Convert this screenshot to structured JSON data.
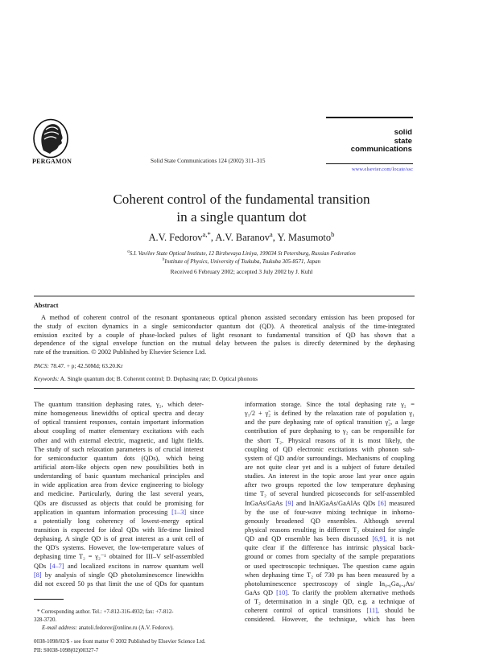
{
  "header": {
    "publisher": "PERGAMON",
    "journal_ref": "Solid State Communications 124 (2002) 311–315",
    "journal_logo": [
      "solid",
      "state",
      "communications"
    ],
    "url": "www.elsevier.com/locate/ssc",
    "link_color": "#3a3ae0"
  },
  "title": [
    "Coherent control of the fundamental transition",
    "in a single quantum dot"
  ],
  "authors": [
    {
      "name": "A.V. Fedorov",
      "sup": "a,*"
    },
    {
      "name": "A.V. Baranov",
      "sup": "a"
    },
    {
      "name": "Y. Masumoto",
      "sup": "b"
    }
  ],
  "author_separator": ", ",
  "affiliations": [
    {
      "sup": "a",
      "text": "S.I. Vavilov State Optical Institute, 12 Birzhevaya Liniya, 199034 St Petersburg, Russian Federation"
    },
    {
      "sup": "b",
      "text": "Institute of Physics, University of Tsukuba, Tsukuba 305-8571, Japan"
    }
  ],
  "received": "Received 6 February 2002; accepted 3 July 2002 by J. Kuhl",
  "abstract": {
    "heading": "Abstract",
    "lines": [
      "A method of coherent control of the resonant spontaneous optical phonon assisted secondary emission has been proposed for",
      "the study of exciton dynamics in a single semiconductor quantum dot (QD). A theoretical analysis of the time-integrated",
      "emission excited by a couple of phase-locked pulses of light resonant to fundamental transition of QD has shown that a",
      "dependence of the signal envelope function on the mutual delay between the pulses is directly determined by the dephasing",
      "rate of the transition. © 2002 Published by Elsevier Science Ltd."
    ],
    "pacs_label": "PACS:",
    "pacs": " 78.47. + p; 42.50Md; 63.20.Kr",
    "keywords_label": "Keywords:",
    "keywords": " A. Single quantum dot; B. Coherent control; D. Dephasing rate; D. Optical phonons"
  },
  "body": {
    "left": [
      [
        {
          "t": "The quantum transition dephasing rates, γ₂, which deter-"
        }
      ],
      [
        {
          "t": "mine homogeneous linewidths of optical spectra and decay"
        }
      ],
      [
        {
          "t": "of optical transient responses, contain important information"
        }
      ],
      [
        {
          "t": "about coupling of matter elementary excitations with each"
        }
      ],
      [
        {
          "t": "other and with external electric, magnetic, and light fields."
        }
      ],
      [
        {
          "t": "The study of such relaxation parameters is of crucial interest"
        }
      ],
      [
        {
          "t": "for semiconductor quantum dots (QDs), which being"
        }
      ],
      [
        {
          "t": "artificial atom-like objects open new possibilities both in"
        }
      ],
      [
        {
          "t": "understanding of basic quantum mechanical principles and"
        }
      ],
      [
        {
          "t": "in wide application area from device engineering to biology"
        }
      ],
      [
        {
          "t": "and medicine. Particularly, during the last several years,"
        }
      ],
      [
        {
          "t": "QDs are discussed as objects that could be promising for"
        }
      ],
      [
        {
          "t": "application in quantum information processing "
        },
        {
          "t": "[1–3]",
          "link": true
        },
        {
          "t": " since"
        }
      ],
      [
        {
          "t": "a potentially long coherency of lowest-energy optical"
        }
      ],
      [
        {
          "t": "transition is expected for ideal QDs with life-time limited"
        }
      ],
      [
        {
          "t": "dephasing. A single QD is of great interest as a unit cell of"
        }
      ],
      [
        {
          "t": "the QD's systems. However, the low-temperature values of"
        }
      ],
      [
        {
          "t": "dephasing time T₂ = γ₂⁻¹ obtained for III–V self-assembled"
        }
      ],
      [
        {
          "t": "QDs "
        },
        {
          "t": "[4–7]",
          "link": true
        },
        {
          "t": " and localized excitons in narrow quantum well"
        }
      ],
      [
        {
          "t": "[8]",
          "link": true
        },
        {
          "t": " by analysis of single QD photoluminescence linewidths"
        }
      ],
      [
        {
          "t": "did not exceed 50 ps that limit the use of QDs for quantum"
        }
      ]
    ],
    "right": [
      [
        {
          "t": "information storage. Since the total dephasing rate γ₂ ="
        }
      ],
      [
        {
          "t": "γ₁/2 + γ̃₂ is defined by the relaxation rate of population γ₁"
        }
      ],
      [
        {
          "t": "and the pure dephasing rate of optical transition γ̃₂, a large"
        }
      ],
      [
        {
          "t": "contribution of pure dephasing to γ₂ can be responsible for"
        }
      ],
      [
        {
          "t": "the short T₂. Physical reasons of it is most likely, the"
        }
      ],
      [
        {
          "t": "coupling of QD electronic excitations with phonon sub-"
        }
      ],
      [
        {
          "t": "system of QD and/or surroundings. Mechanisms of coupling"
        }
      ],
      [
        {
          "t": "are not quite clear yet and is a subject of future detailed"
        }
      ],
      [
        {
          "t": "studies. An interest in the topic arose last year once again"
        }
      ],
      [
        {
          "t": "after two groups reported the low temperature dephasing"
        }
      ],
      [
        {
          "t": "time T₂ of several hundred picoseconds for self-assembled"
        }
      ],
      [
        {
          "t": "InGaAs/GaAs "
        },
        {
          "t": "[9]",
          "link": true
        },
        {
          "t": " and InAlGaAs/GaAlAs QDs "
        },
        {
          "t": "[6]",
          "link": true
        },
        {
          "t": " measured"
        }
      ],
      [
        {
          "t": "by the use of four-wave mixing technique in inhomo-"
        }
      ],
      [
        {
          "t": "genously broadened QD ensembles. Although several"
        }
      ],
      [
        {
          "t": "physical reasons resulting in different T₂ obtained for single"
        }
      ],
      [
        {
          "t": "QD and QD ensemble has been discussed "
        },
        {
          "t": "[6,9]",
          "link": true
        },
        {
          "t": ", it is not"
        }
      ],
      [
        {
          "t": "quite clear if the difference has intrinsic physical back-"
        }
      ],
      [
        {
          "t": "ground or comes from specialty of the sample preparations"
        }
      ],
      [
        {
          "t": "or used spectroscopic techniques. The question came again"
        }
      ],
      [
        {
          "t": "when dephasing time T₂ of 730 ps has been measured by a"
        }
      ],
      [
        {
          "t": "photoluminescence spectroscopy of single In₀.₆Ga₀.₄As/"
        }
      ],
      [
        {
          "t": "GaAs QD "
        },
        {
          "t": "[10]",
          "link": true
        },
        {
          "t": ". To clarify the problem alternative methods"
        }
      ],
      [
        {
          "t": "of T₂ determination in a single QD, e.g. a technique of"
        }
      ],
      [
        {
          "t": "coherent control of optical transitions "
        },
        {
          "t": "[11]",
          "link": true
        },
        {
          "t": ", should be"
        }
      ],
      [
        {
          "t": "considered. However, the technique, which has been"
        }
      ]
    ]
  },
  "footnote": {
    "corresponding": "* Corresponding author. Tel.: +7-812-316-4932; fax: +7-812-",
    "corresponding2": "328-3720.",
    "email_label": "E-mail address:",
    "email": " anatoli.fedorov@online.ru (A.V. Fedorov)."
  },
  "bottom": {
    "issn": "0038-1098/02/$ - see front matter © 2002 Published by Elsevier Science Ltd.",
    "pii": "PII: S0038-1098(02)00327-7"
  }
}
